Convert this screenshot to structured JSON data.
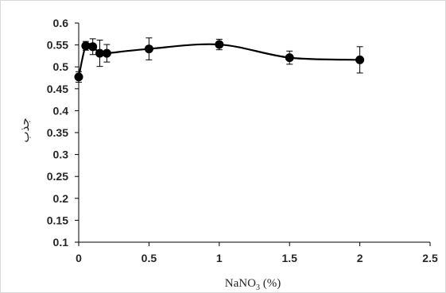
{
  "chart_data": {
    "type": "line",
    "title": "",
    "xlabel": {
      "prefix": "NaNO",
      "subscript": "3",
      "suffix": " (%)"
    },
    "ylabel": "جذب",
    "xlim": [
      0,
      2.5
    ],
    "ylim": [
      0.1,
      0.6
    ],
    "x_ticks": [
      "0",
      "0.5",
      "1",
      "1.5",
      "2",
      "2.5"
    ],
    "y_ticks": [
      "0.1",
      "0.15",
      "0.2",
      "0.25",
      "0.3",
      "0.35",
      "0.4",
      "0.45",
      "0.5",
      "0.55",
      "0.6"
    ],
    "grid": false,
    "legend": "none",
    "smooth": true,
    "series": [
      {
        "x": [
          0,
          0.05,
          0.1,
          0.15,
          0.2,
          0.5,
          1.0,
          1.5,
          2.0
        ],
        "y": [
          0.477,
          0.548,
          0.546,
          0.531,
          0.531,
          0.541,
          0.551,
          0.521,
          0.516
        ],
        "error": [
          0.012,
          0.01,
          0.018,
          0.03,
          0.02,
          0.025,
          0.012,
          0.015,
          0.03
        ],
        "color": "#000000"
      }
    ]
  }
}
